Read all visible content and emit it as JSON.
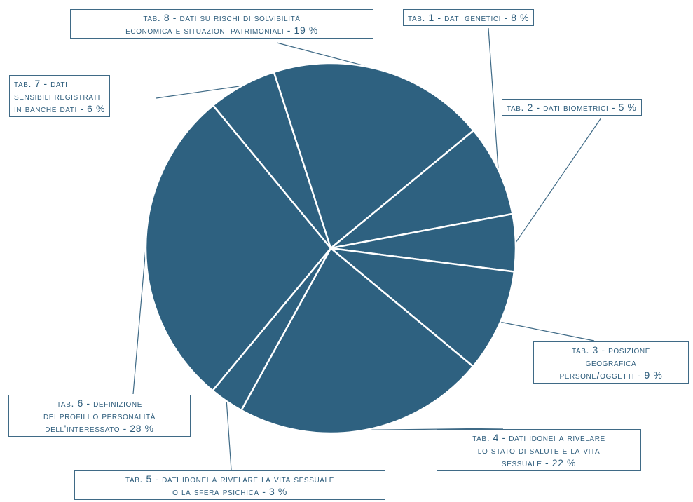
{
  "chart_data": {
    "type": "pie",
    "title": "",
    "slice_color": "#2e6180",
    "separator_color": "#ffffff",
    "leader_color": "#3f6a86",
    "slices": [
      {
        "id": "s1",
        "label_lines": [
          "TAB. 1 - DATI GENETICI - 8 %"
        ],
        "value": 8
      },
      {
        "id": "s2",
        "label_lines": [
          "TAB. 2 - DATI BIOMETRICI - 5 %"
        ],
        "value": 5
      },
      {
        "id": "s3",
        "label_lines": [
          "TAB. 3 - POSIZIONE",
          "GEOGRAFICA",
          "PERSONE/OGGETTI - 9 %"
        ],
        "value": 9
      },
      {
        "id": "s4",
        "label_lines": [
          "TAB. 4 - DATI IDONEI A RIVELARE",
          "LO STATO DI SALUTE E LA VITA",
          "SESSUALE - 22 %"
        ],
        "value": 22
      },
      {
        "id": "s5",
        "label_lines": [
          "TAB. 5 - DATI IDONEI A RIVELARE LA VITA SESSUALE",
          "O LA SFERA PSICHICA - 3 %"
        ],
        "value": 3
      },
      {
        "id": "s6",
        "label_lines": [
          "TAB. 6 - DEFINIZIONE",
          "DEI PROFILI O PERSONALITÀ",
          "DELL'INTERESSATO - 28 %"
        ],
        "value": 28
      },
      {
        "id": "s7",
        "label_lines": [
          "TAB. 7 - DATI",
          "SENSIBILI REGISTRATI",
          "IN BANCHE DATI - 6 %"
        ],
        "value": 6
      },
      {
        "id": "s8",
        "label_lines": [
          "TAB. 8 - DATI SU RISCHI DI SOLVIBILITÀ",
          "ECONOMICA E SITUAZIONI PATRIMONIALI - 19 %"
        ],
        "value": 19
      }
    ]
  }
}
